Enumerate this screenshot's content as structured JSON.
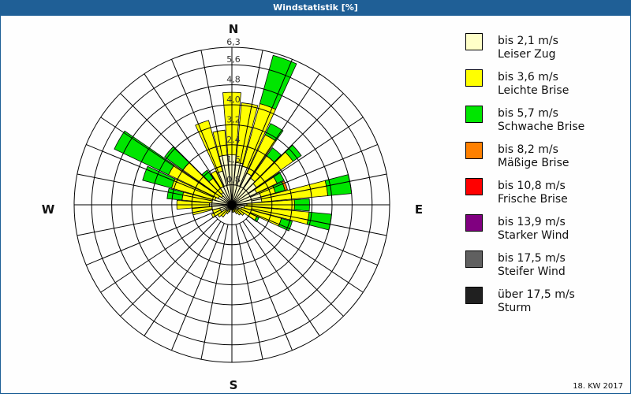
{
  "title": "Windstatistik [%]",
  "footer": "18. KW 2017",
  "compass": {
    "n": "N",
    "e": "E",
    "s": "S",
    "w": "W"
  },
  "legend": [
    {
      "range": "bis 2,1 m/s",
      "name": "Leiser Zug",
      "color": "#ffffc8"
    },
    {
      "range": "bis 3,6 m/s",
      "name": "Leichte Brise",
      "color": "#ffff00"
    },
    {
      "range": "bis 5,7 m/s",
      "name": "Schwache Brise",
      "color": "#00e600"
    },
    {
      "range": "bis 8,2 m/s",
      "name": "Mäßige Brise",
      "color": "#ff8000"
    },
    {
      "range": "bis 10,8 m/s",
      "name": "Frische Brise",
      "color": "#ff0000"
    },
    {
      "range": "bis 13,9 m/s",
      "name": "Starker Wind",
      "color": "#800080"
    },
    {
      "range": "bis 17,5 m/s",
      "name": "Steifer Wind",
      "color": "#606060"
    },
    {
      "range": "über 17,5 m/s",
      "name": "Sturm",
      "color": "#202020"
    }
  ],
  "chart_data": {
    "type": "wind-rose",
    "title": "Windstatistik [%]",
    "unit": "%",
    "rmax": 6.3,
    "ring_labels": [
      "0,8",
      "1,6",
      "2,4",
      "3,2",
      "4,0",
      "4,8",
      "5,6",
      "6,3"
    ],
    "ring_values": [
      0.8,
      1.6,
      2.4,
      3.2,
      4.0,
      4.8,
      5.6,
      6.3
    ],
    "spokes": 32,
    "series": [
      "bis 2,1 m/s",
      "bis 3,6 m/s",
      "bis 5,7 m/s",
      "bis 8,2 m/s"
    ],
    "note": "values are cumulative radii per direction (percent), estimated from the figure",
    "directions": [
      {
        "deg": 0,
        "cum": [
          2.0,
          4.5
        ]
      },
      {
        "deg": 10,
        "cum": [
          1.7,
          4.1
        ]
      },
      {
        "deg": 20,
        "cum": [
          1.6,
          4.2,
          6.2
        ]
      },
      {
        "deg": 30,
        "cum": [
          1.4,
          3.1,
          3.6
        ]
      },
      {
        "deg": 40,
        "cum": [
          1.3,
          2.4,
          2.8
        ]
      },
      {
        "deg": 50,
        "cum": [
          1.2,
          3.0,
          3.4
        ]
      },
      {
        "deg": 60,
        "cum": [
          1.1,
          2.0,
          2.3
        ]
      },
      {
        "deg": 70,
        "cum": [
          1.2,
          1.8,
          2.2,
          2.3
        ]
      },
      {
        "deg": 80,
        "cum": [
          1.2,
          3.85,
          4.8
        ]
      },
      {
        "deg": 90,
        "cum": [
          0.6,
          2.5,
          3.1
        ]
      },
      {
        "deg": 100,
        "cum": [
          0.5,
          3.1,
          4.0
        ]
      },
      {
        "deg": 110,
        "cum": [
          0.4,
          2.05,
          2.5
        ]
      },
      {
        "deg": 120,
        "cum": [
          0.3,
          1.1,
          1.2
        ]
      },
      {
        "deg": 130,
        "cum": [
          0.3,
          0.6
        ]
      },
      {
        "deg": 140,
        "cum": [
          0.2,
          0.5
        ]
      },
      {
        "deg": 150,
        "cum": [
          0.2,
          0.4
        ]
      },
      {
        "deg": 160,
        "cum": [
          0.2,
          0.3
        ]
      },
      {
        "deg": 170,
        "cum": [
          0.2,
          0.3
        ]
      },
      {
        "deg": 180,
        "cum": [
          0.15,
          0.2
        ]
      },
      {
        "deg": 190,
        "cum": [
          0.15,
          0.2
        ]
      },
      {
        "deg": 200,
        "cum": [
          0.2,
          0.3
        ]
      },
      {
        "deg": 210,
        "cum": [
          0.2,
          0.4
        ]
      },
      {
        "deg": 220,
        "cum": [
          0.3,
          0.6
        ]
      },
      {
        "deg": 230,
        "cum": [
          0.3,
          0.7
        ]
      },
      {
        "deg": 240,
        "cum": [
          0.5,
          0.9
        ]
      },
      {
        "deg": 250,
        "cum": [
          0.5,
          0.8
        ]
      },
      {
        "deg": 260,
        "cum": [
          0.8,
          1.6
        ]
      },
      {
        "deg": 270,
        "cum": [
          0.9,
          2.2
        ]
      },
      {
        "deg": 280,
        "cum": [
          0.8,
          2.0,
          2.6
        ]
      },
      {
        "deg": 290,
        "cum": [
          0.7,
          2.5,
          3.7
        ]
      },
      {
        "deg": 300,
        "cum": [
          0.6,
          2.8,
          5.2
        ]
      },
      {
        "deg": 310,
        "cum": [
          0.5,
          2.4,
          3.3
        ]
      },
      {
        "deg": 320,
        "cum": [
          0.6,
          1.3,
          1.7
        ]
      },
      {
        "deg": 330,
        "cum": [
          0.8,
          1.5
        ]
      },
      {
        "deg": 340,
        "cum": [
          1.4,
          3.5
        ]
      },
      {
        "deg": 350,
        "cum": [
          2.0,
          3.0
        ]
      }
    ]
  }
}
